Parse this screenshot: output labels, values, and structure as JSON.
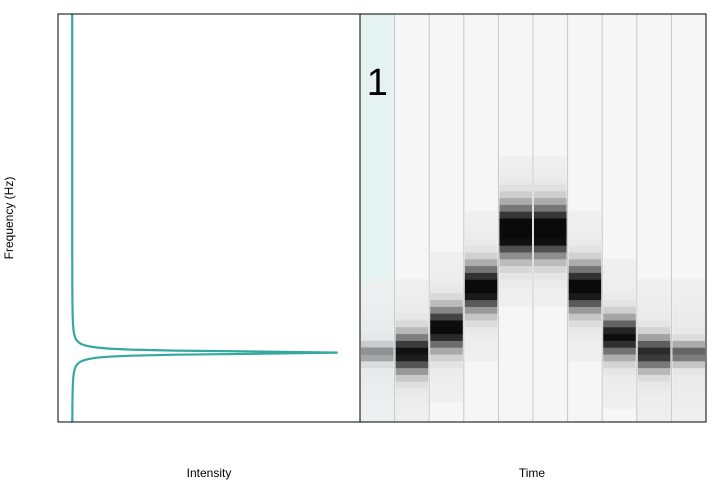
{
  "chart_data": [
    {
      "type": "line",
      "panel": "spectrum",
      "xlabel": "Intensity",
      "ylabel": "Frequency (Hz)",
      "ylim": [
        0,
        1
      ],
      "x": [
        0.02,
        0.025,
        0.03,
        0.04,
        0.06,
        0.1,
        0.2,
        0.45,
        0.97,
        0.45,
        0.2,
        0.1,
        0.06,
        0.04,
        0.03,
        0.025,
        0.02
      ],
      "y": [
        0.0,
        0.05,
        0.1,
        0.15,
        0.17,
        0.18,
        0.185,
        0.19,
        0.18,
        0.17,
        0.165,
        0.16,
        0.15,
        0.12,
        0.06,
        0.03,
        0.0
      ],
      "series": [
        {
          "values_y": [
            1.0,
            0.6,
            0.4,
            0.3,
            0.25,
            0.215,
            0.2,
            0.19,
            0.18,
            0.175,
            0.172,
            0.17,
            0.165,
            0.15,
            0.12,
            0.06,
            0.0
          ],
          "values_x": [
            0.02,
            0.025,
            0.03,
            0.04,
            0.06,
            0.1,
            0.2,
            0.45,
            0.97,
            0.45,
            0.2,
            0.1,
            0.06,
            0.04,
            0.03,
            0.025,
            0.02
          ],
          "color": "#2aa198"
        }
      ],
      "line_color": "#35a89f",
      "grid": false
    },
    {
      "type": "heatmap",
      "panel": "spectrogram",
      "xlabel": "Time",
      "frames": 10,
      "highlighted_frame": 1,
      "highlighted_label": "1",
      "highlight_color": "#e4f3f2",
      "peak_frequency": [
        0.17,
        0.17,
        0.23,
        0.33,
        0.47,
        0.47,
        0.33,
        0.21,
        0.17,
        0.17
      ],
      "peak_intensity": [
        0.45,
        0.8,
        0.85,
        0.9,
        1.0,
        1.0,
        0.9,
        0.8,
        0.7,
        0.5
      ],
      "ylim": [
        0,
        1
      ]
    }
  ]
}
